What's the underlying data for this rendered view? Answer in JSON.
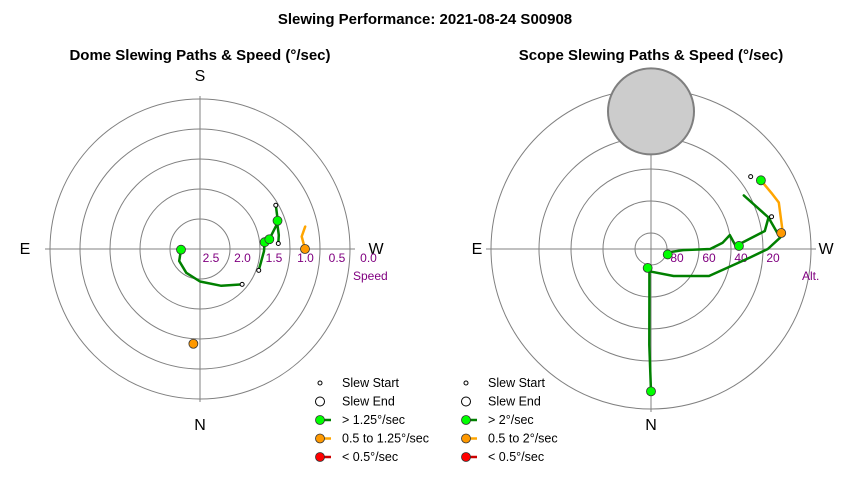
{
  "title": "Slewing Performance: 2021-08-24 S00908",
  "chart_data": [
    {
      "type": "polar-path",
      "title": "Dome Slewing Paths & Speed (°/sec)",
      "compass": [
        "S",
        "W",
        "N",
        "E"
      ],
      "radial_axis": {
        "label": "Speed",
        "ticks": [
          "2.5",
          "2.0",
          "1.5",
          "1.0",
          "0.5",
          "0.0"
        ],
        "range": [
          3.0,
          0.0
        ],
        "inner_origin": 3.0
      },
      "paths": [
        {
          "category": "fast",
          "points": [
            [
              230,
              2.0
            ],
            [
              210,
              2.25
            ],
            [
              180,
              2.45
            ],
            [
              150,
              2.55
            ],
            [
              120,
              2.62
            ],
            [
              92,
              2.72
            ]
          ]
        },
        {
          "category": "fast",
          "points": [
            [
              250,
              1.85
            ],
            [
              268,
              1.82
            ],
            [
              276,
              1.8
            ]
          ]
        },
        {
          "category": "fast",
          "points": [
            [
              274,
              1.53
            ],
            [
              280,
              1.5
            ],
            [
              287,
              1.48
            ],
            [
              290,
              1.45
            ]
          ]
        },
        {
          "category": "fast",
          "points": [
            [
              300,
              1.35
            ],
            [
              289,
              1.45
            ],
            [
              278,
              1.7
            ]
          ]
        },
        {
          "category": "medium",
          "points": [
            [
              270,
              1.0
            ],
            [
              277,
              1.05
            ],
            [
              282,
              0.95
            ]
          ]
        }
      ],
      "start_markers": [
        [
          230,
          2.0
        ],
        [
          250,
          1.85
        ],
        [
          274,
          1.53
        ],
        [
          300,
          1.35
        ],
        [
          270,
          1.0
        ]
      ],
      "end_markers": [
        {
          "category": "fast",
          "pos": [
            92,
            2.72
          ]
        },
        {
          "category": "fast",
          "pos": [
            276,
            1.8
          ]
        },
        {
          "category": "fast",
          "pos": [
            290,
            1.45
          ]
        },
        {
          "category": "fast",
          "pos": [
            278,
            1.7
          ]
        },
        {
          "category": "medium",
          "pos": [
            270,
            1.0
          ]
        },
        {
          "category": "medium",
          "pos": [
            176,
            1.2
          ]
        }
      ],
      "legend": {
        "placement": "bottom-right",
        "items": [
          "Slew Start",
          "Slew End",
          "> 1.25°/sec",
          "0.5 to 1.25°/sec",
          "< 0.5°/sec"
        ]
      }
    },
    {
      "type": "polar-path",
      "title": "Scope Slewing Paths & Speed (°/sec)",
      "compass": [
        "S",
        "W",
        "N",
        "E"
      ],
      "radial_axis": {
        "label": "Alt.",
        "ticks": [
          "80",
          "60",
          "40",
          "20"
        ],
        "range": [
          90,
          0
        ]
      },
      "zone": {
        "azimuth": 0,
        "altitude": 14,
        "radius_deg": 22
      },
      "paths": [
        {
          "category": "fast",
          "points": [
            [
              180,
              11
            ],
            [
              179,
              40
            ],
            [
              178,
              72
            ],
            [
              176,
              86
            ],
            [
              170,
              88
            ]
          ]
        },
        {
          "category": "fast",
          "points": [
            [
              176,
              86
            ],
            [
              220,
              78
            ],
            [
              245,
              60
            ],
            [
              265,
              38
            ],
            [
              270,
              27
            ],
            [
              275,
              19
            ],
            [
              285,
              24
            ],
            [
              300,
              33
            ]
          ]
        },
        {
          "category": "fast",
          "points": [
            [
              285,
              24
            ],
            [
              279,
              28
            ],
            [
              272,
              47
            ],
            [
              280,
              50
            ],
            [
              275,
              55
            ],
            [
              270,
              63
            ],
            [
              268,
              80
            ],
            [
              262,
              87
            ],
            [
              252,
              89
            ]
          ]
        },
        {
          "category": "medium",
          "points": [
            [
              278,
              17
            ],
            [
              290,
              15
            ],
            [
              295,
              17
            ],
            [
              302,
              19
            ]
          ]
        }
      ],
      "start_markers": [
        [
          302,
          19
        ],
        [
          306,
          23
        ],
        [
          285,
          22
        ]
      ],
      "end_markers": [
        {
          "category": "fast",
          "pos": [
            180,
            11
          ]
        },
        {
          "category": "fast",
          "pos": [
            170,
            88
          ]
        },
        {
          "category": "fast",
          "pos": [
            252,
            89
          ]
        },
        {
          "category": "fast",
          "pos": [
            272,
            45
          ]
        },
        {
          "category": "fast",
          "pos": [
            302,
            19
          ]
        },
        {
          "category": "medium",
          "pos": [
            277,
            18
          ]
        }
      ],
      "legend": {
        "placement": "bottom-right",
        "items": [
          "Slew Start",
          "Slew End",
          "> 2°/sec",
          "0.5 to 2°/sec",
          "< 0.5°/sec"
        ]
      }
    }
  ],
  "colors": {
    "fast": "#008000",
    "fast_fill": "#00ff00",
    "medium": "#ffa500",
    "medium_fill": "#ff9900",
    "slow": "#cc0000",
    "slow_fill": "#ff0000",
    "grid": "#808080",
    "tick": "#800080",
    "zone_fill": "#cccccc",
    "zone_stroke": "#7f7f7f"
  }
}
